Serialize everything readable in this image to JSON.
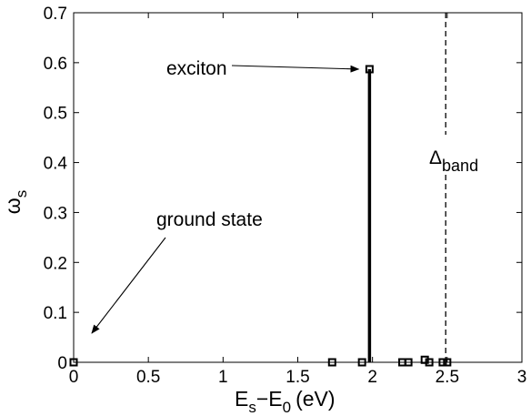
{
  "chart_data": {
    "type": "scatter",
    "xlabel_parts": {
      "E": "E",
      "s": "s",
      "minus": "−",
      "E0": "E",
      "zero": "0",
      "unit": "(eV)"
    },
    "ylabel_parts": {
      "omega": "ω",
      "s": "s"
    },
    "xlim": [
      0,
      3
    ],
    "ylim": [
      0,
      0.7
    ],
    "xticks": [
      0,
      0.5,
      1,
      1.5,
      2,
      2.5,
      3
    ],
    "xtick_labels": [
      "0",
      "0.5",
      "1",
      "1.5",
      "2",
      "2.5",
      "3"
    ],
    "yticks": [
      0,
      0.1,
      0.2,
      0.3,
      0.4,
      0.5,
      0.6,
      0.7
    ],
    "ytick_labels": [
      "0",
      "0.1",
      "0.2",
      "0.3",
      "0.4",
      "0.5",
      "0.6",
      "0.7"
    ],
    "grid": false,
    "points": [
      {
        "x": 0.0,
        "y": 0.0
      },
      {
        "x": 1.73,
        "y": 0.0
      },
      {
        "x": 1.93,
        "y": 0.0
      },
      {
        "x": 1.98,
        "y": 0.587
      },
      {
        "x": 2.2,
        "y": 0.0
      },
      {
        "x": 2.24,
        "y": 0.0
      },
      {
        "x": 2.35,
        "y": 0.005
      },
      {
        "x": 2.38,
        "y": 0.0
      },
      {
        "x": 2.47,
        "y": 0.0
      },
      {
        "x": 2.5,
        "y": 0.0
      }
    ],
    "stem": {
      "x": 1.98,
      "y": 0.587
    },
    "band_edge": {
      "x": 2.49,
      "label_delta": "Δ",
      "label_sub": "band"
    },
    "annotations": {
      "exciton": {
        "text": "exciton",
        "target": [
          1.98,
          0.587
        ]
      },
      "ground_state": {
        "text": "ground state",
        "target": [
          0.0,
          0.0
        ]
      }
    }
  }
}
